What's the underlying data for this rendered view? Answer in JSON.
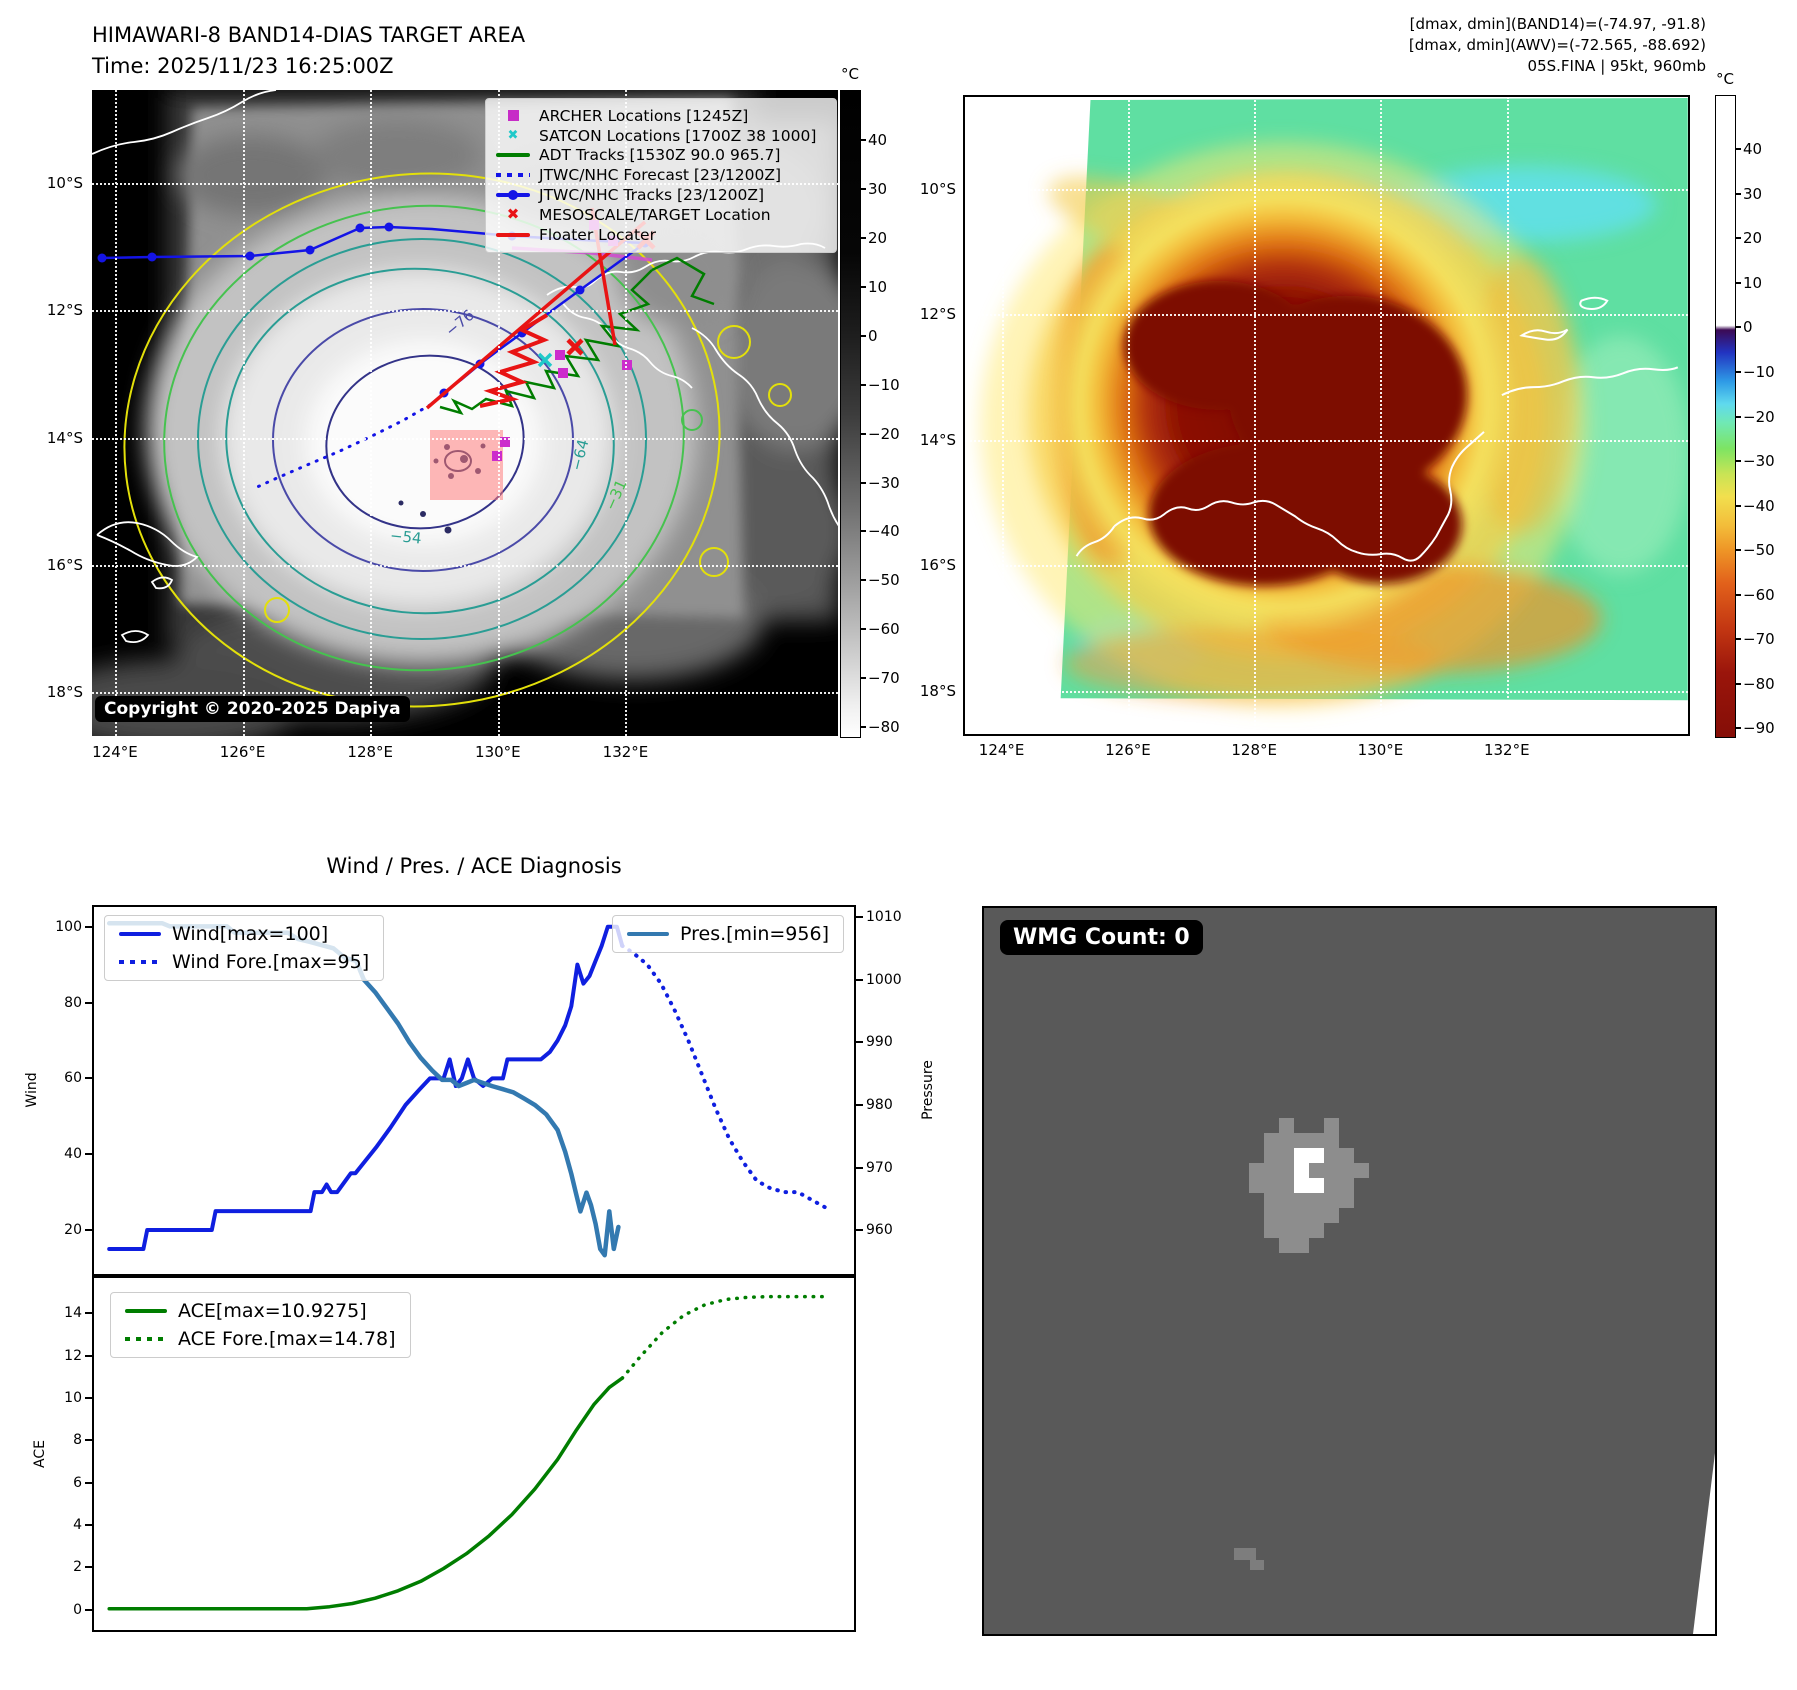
{
  "header": {
    "title": "HIMAWARI-8 BAND14-DIAS TARGET AREA",
    "time_line": "Time: 2025/11/23 16:25:00Z",
    "info_lines": [
      "[dmax, dmin](BAND14)=(-74.97, -91.8)",
      "[dmax, dmin](AWV)=(-72.565, -88.692)",
      "05S.FINA | 95kt, 960mb"
    ]
  },
  "band14_map": {
    "x_ticks": {
      "domain": [
        123.64,
        135.33
      ],
      "values": [
        124,
        126,
        128,
        130,
        132
      ],
      "labels": [
        "124°E",
        "126°E",
        "128°E",
        "130°E",
        "132°E"
      ]
    },
    "y_ticks": {
      "domain": [
        8.54,
        18.69
      ],
      "values": [
        10,
        12,
        14,
        16,
        18
      ],
      "labels": [
        "10°S",
        "12°S",
        "14°S",
        "16°S",
        "18°S"
      ]
    },
    "legend": [
      {
        "swatch": "square",
        "color": "#c72cc7",
        "label": "ARCHER Locations [1245Z]"
      },
      {
        "swatch": "xcross",
        "color": "#1fc9c9",
        "label": "SATCON Locations [1700Z 38 1000]"
      },
      {
        "swatch": "line",
        "color": "#007d00",
        "label": "ADT Tracks [1530Z 90.0 965.7]"
      },
      {
        "swatch": "dotted",
        "color": "#1414e6",
        "label": "JTWC/NHC Forecast [23/1200Z]"
      },
      {
        "swatch": "linedot",
        "color": "#1414e6",
        "label": "JTWC/NHC Tracks [23/1200Z]"
      },
      {
        "swatch": "xmark",
        "color": "#e81414",
        "label": "MESOSCALE/TARGET Location"
      },
      {
        "swatch": "line",
        "color": "#e81414",
        "label": "Floater Locater"
      }
    ],
    "contour_labels": [
      {
        "text": "−76"
      },
      {
        "text": "−64"
      },
      {
        "text": "−54"
      },
      {
        "text": "−31"
      }
    ],
    "copyright": "Copyright © 2020-2025 Dapiya",
    "colorbar": {
      "unit": "°C",
      "domain": [
        50,
        -82
      ],
      "tick_values": [
        40,
        30,
        20,
        10,
        0,
        -10,
        -20,
        -30,
        -40,
        -50,
        -60,
        -70,
        -80
      ],
      "tick_labels": [
        "40",
        "30",
        "20",
        "10",
        "0",
        "−10",
        "−20",
        "−30",
        "−40",
        "−50",
        "−60",
        "−70",
        "−80"
      ]
    }
  },
  "awv_map": {
    "x_ticks": {
      "domain": [
        123.42,
        134.87
      ],
      "values": [
        124,
        126,
        128,
        130,
        132
      ],
      "labels": [
        "124°E",
        "126°E",
        "128°E",
        "130°E",
        "132°E"
      ]
    },
    "y_ticks": {
      "domain": [
        8.54,
        18.69
      ],
      "values": [
        10,
        12,
        14,
        16,
        18
      ],
      "labels": [
        "10°S",
        "12°S",
        "14°S",
        "16°S",
        "18°S"
      ]
    },
    "colorbar": {
      "unit": "°C",
      "domain": [
        52,
        -92
      ],
      "tick_values": [
        40,
        30,
        20,
        10,
        0,
        -10,
        -20,
        -30,
        -40,
        -50,
        -60,
        -70,
        -80,
        -90
      ],
      "tick_labels": [
        "40",
        "30",
        "20",
        "10",
        "0",
        "−10",
        "−20",
        "−30",
        "−40",
        "−50",
        "−60",
        "−70",
        "−80",
        "−90"
      ]
    }
  },
  "wmg_panel": {
    "label": "WMG Count: 0"
  },
  "chart_data": [
    {
      "id": "wind_pres",
      "type": "line",
      "title": "Wind / Pres. / ACE Diagnosis",
      "left_axis": {
        "label": "Wind",
        "domain": [
          8.4,
          105.2
        ],
        "tick_values": [
          20,
          40,
          60,
          80,
          100
        ],
        "tick_labels": [
          "20",
          "40",
          "60",
          "80",
          "100"
        ]
      },
      "right_axis": {
        "label": "Pressure",
        "domain": [
          953,
          1011.6
        ],
        "tick_values": [
          960,
          970,
          980,
          990,
          1000,
          1010
        ],
        "tick_labels": [
          "960",
          "970",
          "980",
          "990",
          "1000",
          "1010"
        ]
      },
      "series": [
        {
          "name": "Wind[max=100]",
          "axis": "left",
          "style": "solid",
          "color": "#0f1fe0",
          "width": 4,
          "x": [
            0.02,
            0.065,
            0.07,
            0.155,
            0.16,
            0.25,
            0.262,
            0.285,
            0.29,
            0.3,
            0.306,
            0.312,
            0.32,
            0.338,
            0.344,
            0.356,
            0.372,
            0.39,
            0.41,
            0.428,
            0.442,
            0.46,
            0.468,
            0.476,
            0.484,
            0.492,
            0.5,
            0.512,
            0.524,
            0.538,
            0.544,
            0.556,
            0.588,
            0.6,
            0.61,
            0.62,
            0.628,
            0.636,
            0.644,
            0.652,
            0.66,
            0.668,
            0.676,
            0.688,
            0.695
          ],
          "y": [
            15,
            15,
            20,
            20,
            25,
            25,
            25,
            25,
            30,
            30,
            32,
            30,
            30,
            35,
            35,
            38,
            42,
            47,
            53,
            57,
            60,
            60,
            65,
            58,
            60,
            65,
            60,
            58,
            60,
            60,
            65,
            65,
            65,
            67,
            70,
            74,
            79,
            90,
            85,
            87,
            91,
            95,
            100,
            100,
            95
          ]
        },
        {
          "name": "Wind Fore.[max=95]",
          "axis": "left",
          "style": "dotted",
          "color": "#0f1fe0",
          "width": 4,
          "x": [
            0.695,
            0.71,
            0.728,
            0.746,
            0.764,
            0.782,
            0.8,
            0.818,
            0.836,
            0.854,
            0.872,
            0.89,
            0.908,
            0.926,
            0.944,
            0.962
          ],
          "y": [
            95,
            93,
            90,
            85,
            78,
            70,
            61,
            52,
            44,
            38,
            33,
            31,
            30,
            30,
            28,
            26
          ]
        },
        {
          "name": "Pres.[min=956]",
          "axis": "right",
          "style": "solid",
          "color": "#3379b0",
          "width": 4.5,
          "x": [
            0.02,
            0.09,
            0.1,
            0.175,
            0.185,
            0.255,
            0.268,
            0.285,
            0.3,
            0.315,
            0.33,
            0.345,
            0.355,
            0.37,
            0.385,
            0.4,
            0.415,
            0.43,
            0.445,
            0.458,
            0.47,
            0.48,
            0.49,
            0.5,
            0.512,
            0.524,
            0.538,
            0.552,
            0.566,
            0.58,
            0.595,
            0.61,
            0.62,
            0.628,
            0.634,
            0.64,
            0.648,
            0.654,
            0.66,
            0.666,
            0.672,
            0.678,
            0.684,
            0.69
          ],
          "y": [
            1009,
            1009,
            1008.5,
            1008.5,
            1007.5,
            1007.5,
            1006.5,
            1006,
            1005.5,
            1005,
            1003.5,
            1003,
            1000,
            998,
            995.5,
            993,
            990,
            987.5,
            985.5,
            984,
            984,
            983,
            983.5,
            984,
            983.5,
            983,
            982.5,
            982,
            981,
            980,
            978.5,
            976,
            972.5,
            969,
            966,
            963,
            966,
            964,
            961,
            957,
            956,
            963,
            957,
            960.5
          ]
        }
      ]
    },
    {
      "id": "ace",
      "type": "line",
      "left_axis": {
        "label": "ACE",
        "domain": [
          -0.95,
          15.66
        ],
        "tick_values": [
          0,
          2,
          4,
          6,
          8,
          10,
          12,
          14
        ],
        "tick_labels": [
          "0",
          "2",
          "4",
          "6",
          "8",
          "10",
          "12",
          "14"
        ]
      },
      "series": [
        {
          "name": "ACE[max=10.9275]",
          "axis": "left",
          "style": "solid",
          "color": "#007d00",
          "width": 3.5,
          "x": [
            0.02,
            0.28,
            0.31,
            0.34,
            0.37,
            0.4,
            0.43,
            0.46,
            0.49,
            0.52,
            0.55,
            0.58,
            0.61,
            0.635,
            0.658,
            0.678,
            0.695
          ],
          "y": [
            0.05,
            0.05,
            0.15,
            0.3,
            0.55,
            0.9,
            1.35,
            1.95,
            2.65,
            3.5,
            4.5,
            5.7,
            7.1,
            8.5,
            9.7,
            10.5,
            10.93
          ]
        },
        {
          "name": "ACE Fore.[max=14.78]",
          "axis": "left",
          "style": "dotted",
          "color": "#007d00",
          "width": 3.5,
          "x": [
            0.695,
            0.72,
            0.748,
            0.776,
            0.804,
            0.832,
            0.86,
            0.888,
            0.916,
            0.944,
            0.965
          ],
          "y": [
            10.93,
            12.0,
            13.1,
            13.9,
            14.4,
            14.65,
            14.75,
            14.78,
            14.78,
            14.78,
            14.78
          ]
        }
      ]
    }
  ]
}
